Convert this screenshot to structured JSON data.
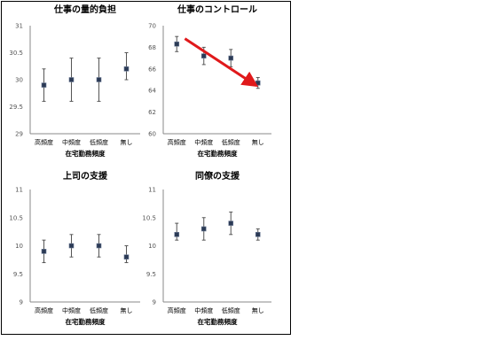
{
  "chart_data": [
    {
      "type": "scatter",
      "title": "仕事の量的負担",
      "xlabel": "在宅勤務頻度",
      "categories": [
        "高頻度",
        "中頻度",
        "低頻度",
        "無し"
      ],
      "values": [
        29.9,
        30.0,
        30.0,
        30.2
      ],
      "err_low": [
        29.6,
        29.6,
        29.6,
        30.0
      ],
      "err_high": [
        30.2,
        30.4,
        30.4,
        30.5
      ],
      "ylim": [
        29,
        31
      ],
      "yticks": [
        "31",
        "30.5",
        "30",
        "29.5",
        "29"
      ]
    },
    {
      "type": "scatter",
      "title": "仕事のコントロール",
      "xlabel": "在宅勤務頻度",
      "categories": [
        "高頻度",
        "中頻度",
        "低頻度",
        "無し"
      ],
      "values": [
        68.3,
        67.2,
        67.0,
        64.7
      ],
      "err_low": [
        67.6,
        66.4,
        66.2,
        64.2
      ],
      "err_high": [
        69.0,
        68.0,
        67.8,
        65.2
      ],
      "ylim": [
        60,
        70
      ],
      "yticks": [
        "70",
        "68",
        "66",
        "64",
        "62",
        "60"
      ],
      "trend_arrow": {
        "color": "#e0191b",
        "from": [
          0.8,
          68.8
        ],
        "to": [
          3.35,
          64.6
        ]
      }
    },
    {
      "type": "scatter",
      "title": "上司の支援",
      "xlabel": "在宅勤務頻度",
      "categories": [
        "高頻度",
        "中頻度",
        "低頻度",
        "無し"
      ],
      "values": [
        9.9,
        10.0,
        10.0,
        9.8
      ],
      "err_low": [
        9.7,
        9.8,
        9.8,
        9.7
      ],
      "err_high": [
        10.1,
        10.2,
        10.2,
        10.0
      ],
      "ylim": [
        9,
        11
      ],
      "yticks": [
        "11",
        "10.5",
        "10",
        "9.5",
        "9"
      ]
    },
    {
      "type": "scatter",
      "title": "同僚の支援",
      "xlabel": "在宅勤務頻度",
      "categories": [
        "高頻度",
        "中頻度",
        "低頻度",
        "無し"
      ],
      "values": [
        10.2,
        10.3,
        10.4,
        10.2
      ],
      "err_low": [
        10.1,
        10.1,
        10.2,
        10.1
      ],
      "err_high": [
        10.4,
        10.5,
        10.6,
        10.3
      ],
      "ylim": [
        9,
        11
      ],
      "yticks": [
        "11",
        "10.5",
        "10",
        "9.5",
        "9"
      ]
    }
  ],
  "style": {
    "marker_color": "#2b3a55",
    "axis_color": "#888888",
    "errorbar_color": "#555555"
  }
}
